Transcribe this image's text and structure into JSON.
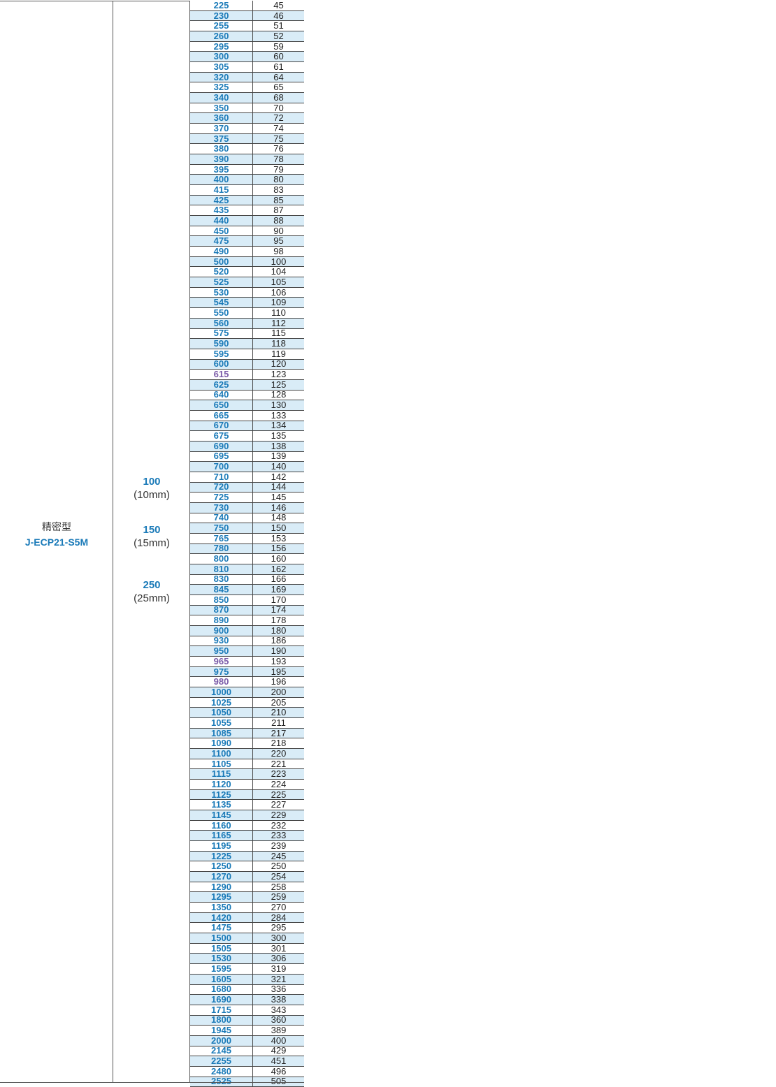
{
  "belt_type": {
    "name": "精密型",
    "model": "J-ECP21-S5M"
  },
  "widths": [
    {
      "code": "100",
      "mm": "(10mm)"
    },
    {
      "code": "150",
      "mm": "(15mm)"
    },
    {
      "code": "250",
      "mm": "(25mm)"
    }
  ],
  "colors": {
    "blue_text": "#1a7ab8",
    "purple_text": "#7a5aa8",
    "alt_row_bg": "#d9ecf7"
  },
  "rows": [
    {
      "length": "225",
      "teeth": "45"
    },
    {
      "length": "230",
      "teeth": "46"
    },
    {
      "length": "255",
      "teeth": "51"
    },
    {
      "length": "260",
      "teeth": "52"
    },
    {
      "length": "295",
      "teeth": "59"
    },
    {
      "length": "300",
      "teeth": "60"
    },
    {
      "length": "305",
      "teeth": "61"
    },
    {
      "length": "320",
      "teeth": "64"
    },
    {
      "length": "325",
      "teeth": "65"
    },
    {
      "length": "340",
      "teeth": "68"
    },
    {
      "length": "350",
      "teeth": "70"
    },
    {
      "length": "360",
      "teeth": "72"
    },
    {
      "length": "370",
      "teeth": "74"
    },
    {
      "length": "375",
      "teeth": "75"
    },
    {
      "length": "380",
      "teeth": "76"
    },
    {
      "length": "390",
      "teeth": "78"
    },
    {
      "length": "395",
      "teeth": "79"
    },
    {
      "length": "400",
      "teeth": "80"
    },
    {
      "length": "415",
      "teeth": "83"
    },
    {
      "length": "425",
      "teeth": "85"
    },
    {
      "length": "435",
      "teeth": "87"
    },
    {
      "length": "440",
      "teeth": "88"
    },
    {
      "length": "450",
      "teeth": "90"
    },
    {
      "length": "475",
      "teeth": "95"
    },
    {
      "length": "490",
      "teeth": "98"
    },
    {
      "length": "500",
      "teeth": "100"
    },
    {
      "length": "520",
      "teeth": "104"
    },
    {
      "length": "525",
      "teeth": "105"
    },
    {
      "length": "530",
      "teeth": "106"
    },
    {
      "length": "545",
      "teeth": "109"
    },
    {
      "length": "550",
      "teeth": "110"
    },
    {
      "length": "560",
      "teeth": "112"
    },
    {
      "length": "575",
      "teeth": "115"
    },
    {
      "length": "590",
      "teeth": "118"
    },
    {
      "length": "595",
      "teeth": "119"
    },
    {
      "length": "600",
      "teeth": "120"
    },
    {
      "length": "615",
      "teeth": "123",
      "purple": true
    },
    {
      "length": "625",
      "teeth": "125"
    },
    {
      "length": "640",
      "teeth": "128"
    },
    {
      "length": "650",
      "teeth": "130"
    },
    {
      "length": "665",
      "teeth": "133"
    },
    {
      "length": "670",
      "teeth": "134"
    },
    {
      "length": "675",
      "teeth": "135"
    },
    {
      "length": "690",
      "teeth": "138"
    },
    {
      "length": "695",
      "teeth": "139"
    },
    {
      "length": "700",
      "teeth": "140"
    },
    {
      "length": "710",
      "teeth": "142"
    },
    {
      "length": "720",
      "teeth": "144"
    },
    {
      "length": "725",
      "teeth": "145"
    },
    {
      "length": "730",
      "teeth": "146"
    },
    {
      "length": "740",
      "teeth": "148"
    },
    {
      "length": "750",
      "teeth": "150"
    },
    {
      "length": "765",
      "teeth": "153"
    },
    {
      "length": "780",
      "teeth": "156"
    },
    {
      "length": "800",
      "teeth": "160"
    },
    {
      "length": "810",
      "teeth": "162"
    },
    {
      "length": "830",
      "teeth": "166"
    },
    {
      "length": "845",
      "teeth": "169"
    },
    {
      "length": "850",
      "teeth": "170"
    },
    {
      "length": "870",
      "teeth": "174"
    },
    {
      "length": "890",
      "teeth": "178"
    },
    {
      "length": "900",
      "teeth": "180"
    },
    {
      "length": "930",
      "teeth": "186"
    },
    {
      "length": "950",
      "teeth": "190"
    },
    {
      "length": "965",
      "teeth": "193",
      "purple": true
    },
    {
      "length": "975",
      "teeth": "195"
    },
    {
      "length": "980",
      "teeth": "196",
      "purple": true
    },
    {
      "length": "1000",
      "teeth": "200"
    },
    {
      "length": "1025",
      "teeth": "205"
    },
    {
      "length": "1050",
      "teeth": "210"
    },
    {
      "length": "1055",
      "teeth": "211"
    },
    {
      "length": "1085",
      "teeth": "217"
    },
    {
      "length": "1090",
      "teeth": "218"
    },
    {
      "length": "1100",
      "teeth": "220"
    },
    {
      "length": "1105",
      "teeth": "221"
    },
    {
      "length": "1115",
      "teeth": "223"
    },
    {
      "length": "1120",
      "teeth": "224"
    },
    {
      "length": "1125",
      "teeth": "225"
    },
    {
      "length": "1135",
      "teeth": "227"
    },
    {
      "length": "1145",
      "teeth": "229"
    },
    {
      "length": "1160",
      "teeth": "232"
    },
    {
      "length": "1165",
      "teeth": "233"
    },
    {
      "length": "1195",
      "teeth": "239"
    },
    {
      "length": "1225",
      "teeth": "245"
    },
    {
      "length": "1250",
      "teeth": "250"
    },
    {
      "length": "1270",
      "teeth": "254"
    },
    {
      "length": "1290",
      "teeth": "258"
    },
    {
      "length": "1295",
      "teeth": "259"
    },
    {
      "length": "1350",
      "teeth": "270"
    },
    {
      "length": "1420",
      "teeth": "284"
    },
    {
      "length": "1475",
      "teeth": "295"
    },
    {
      "length": "1500",
      "teeth": "300"
    },
    {
      "length": "1505",
      "teeth": "301"
    },
    {
      "length": "1530",
      "teeth": "306"
    },
    {
      "length": "1595",
      "teeth": "319"
    },
    {
      "length": "1605",
      "teeth": "321"
    },
    {
      "length": "1680",
      "teeth": "336"
    },
    {
      "length": "1690",
      "teeth": "338"
    },
    {
      "length": "1715",
      "teeth": "343"
    },
    {
      "length": "1800",
      "teeth": "360"
    },
    {
      "length": "1945",
      "teeth": "389"
    },
    {
      "length": "2000",
      "teeth": "400"
    },
    {
      "length": "2145",
      "teeth": "429"
    },
    {
      "length": "2255",
      "teeth": "451"
    },
    {
      "length": "2480",
      "teeth": "496"
    },
    {
      "length": "2525",
      "teeth": "505"
    }
  ]
}
